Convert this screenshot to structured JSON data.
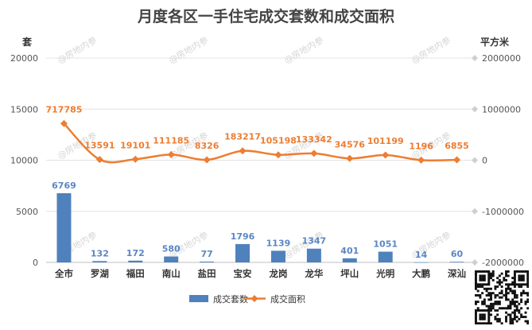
{
  "chart_data": {
    "type": "bar+line",
    "title": "月度各区一手住宅成交套数和成交面积",
    "left_axis_unit": "套",
    "right_axis_unit": "平方米",
    "categories": [
      "全市",
      "罗湖",
      "福田",
      "南山",
      "盐田",
      "宝安",
      "龙岗",
      "龙华",
      "坪山",
      "光明",
      "大鹏",
      "深汕"
    ],
    "series": [
      {
        "name": "成交套数",
        "type": "bar",
        "axis": "left",
        "color": "#4f81bd",
        "values": [
          6769,
          132,
          172,
          580,
          77,
          1796,
          1139,
          1347,
          401,
          1051,
          14,
          60
        ]
      },
      {
        "name": "成交面积",
        "type": "line",
        "axis": "right",
        "color": "#ed7d31",
        "values": [
          717785,
          13591,
          19101,
          111185,
          8326,
          183217,
          105198,
          133342,
          34576,
          101199,
          1196,
          6855
        ]
      }
    ],
    "left_ylim": [
      0,
      20000
    ],
    "left_ticks": [
      0,
      5000,
      10000,
      15000,
      20000
    ],
    "right_ylim": [
      -2000000,
      2000000
    ],
    "right_ticks": [
      -2000000,
      -1000000,
      0,
      1000000,
      2000000
    ],
    "grid": true,
    "legend_position": "bottom"
  },
  "watermark_text": "@房地内参",
  "icons": {
    "qr": "qr-code-icon"
  }
}
